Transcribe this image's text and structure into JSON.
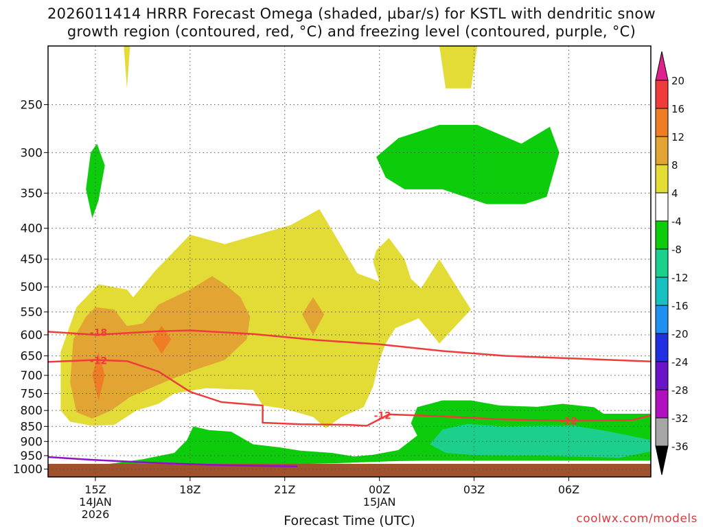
{
  "title": {
    "line1": "2026011414 HRRR Forecast Omega (shaded, µbar/s) for KSTL with dendritic snow",
    "line2": "growth region (contoured, red, °C) and freezing level (contoured, purple, °C)"
  },
  "credit": "coolwx.com/models",
  "chart_data": {
    "type": "time-height cross section",
    "xlabel": "Forecast Time (UTC)",
    "ylabel": "",
    "x_range_hours": [
      13.5,
      32.6
    ],
    "y_range_hPa": [
      200,
      1030
    ],
    "grid": true,
    "x_ticks": [
      {
        "hour": 15,
        "label": "15Z",
        "sub1": "14JAN",
        "sub2": "2026"
      },
      {
        "hour": 18,
        "label": "18Z",
        "sub1": "",
        "sub2": ""
      },
      {
        "hour": 21,
        "label": "21Z",
        "sub1": "",
        "sub2": ""
      },
      {
        "hour": 24,
        "label": "00Z",
        "sub1": "15JAN",
        "sub2": ""
      },
      {
        "hour": 27,
        "label": "03Z",
        "sub1": "",
        "sub2": ""
      },
      {
        "hour": 30,
        "label": "06Z",
        "sub1": "",
        "sub2": ""
      }
    ],
    "y_ticks": [
      250,
      300,
      350,
      400,
      450,
      500,
      550,
      600,
      650,
      700,
      750,
      800,
      850,
      900,
      950,
      1000
    ],
    "colorbar": {
      "labels": [
        "20",
        "16",
        "12",
        "8",
        "4",
        "-4",
        "-8",
        "-12",
        "-16",
        "-20",
        "-24",
        "-28",
        "-32",
        "-36"
      ],
      "bins": [
        {
          "range": "16 to 20",
          "color": "#ee3b3b"
        },
        {
          "range": "12 to 16",
          "color": "#ee7d26"
        },
        {
          "range": "8 to 12",
          "color": "#e2a534"
        },
        {
          "range": "4 to 8",
          "color": "#e3dc36"
        },
        {
          "range": "-4 to 4",
          "color": "#ffffff"
        },
        {
          "range": "-8 to -4",
          "color": "#0ccc0c"
        },
        {
          "range": "-12 to -8",
          "color": "#1ccf8c"
        },
        {
          "range": "-16 to -12",
          "color": "#18c0c0"
        },
        {
          "range": "-20 to -16",
          "color": "#1f8ff0"
        },
        {
          "range": "-24 to -20",
          "color": "#2030e0"
        },
        {
          "range": "-28 to -24",
          "color": "#6a14c8"
        },
        {
          "range": "-32 to -28",
          "color": "#b010c0"
        },
        {
          "range": "-36 to -32",
          "color": "#a6a6a6"
        }
      ],
      "top_extend_color": "#e0208c",
      "bottom_extend_color": "#000000"
    },
    "colors": {
      "omega_4_8": "#e3dc36",
      "omega_8_12": "#e2a534",
      "omega_12_16": "#ee7d26",
      "omega_neg4_neg8": "#0ccc0c",
      "omega_neg8_neg12": "#1ccf8c",
      "ground": "#a0522d",
      "dgz_contour": "#ee3b3b",
      "freezing_level": "#8e10c8"
    },
    "series": [
      {
        "name": "-18",
        "color": "#ee3b3b",
        "points": [
          [
            13.5,
            593
          ],
          [
            15,
            600
          ],
          [
            17,
            592
          ],
          [
            18,
            590
          ],
          [
            20,
            598
          ],
          [
            22,
            612
          ],
          [
            24,
            622
          ],
          [
            26,
            638
          ],
          [
            28,
            650
          ],
          [
            30,
            656
          ],
          [
            32.6,
            664
          ]
        ]
      },
      {
        "name": "-12",
        "color": "#ee3b3b",
        "points": [
          [
            13.5,
            665
          ],
          [
            15,
            660
          ],
          [
            16,
            663
          ],
          [
            17,
            690
          ],
          [
            18,
            745
          ],
          [
            19,
            775
          ],
          [
            20.3,
            785
          ],
          [
            20.3,
            838
          ],
          [
            21.5,
            843
          ],
          [
            23,
            845
          ],
          [
            23.6,
            848
          ],
          [
            24.3,
            812
          ],
          [
            26,
            818
          ],
          [
            28,
            828
          ],
          [
            30,
            832
          ],
          [
            32,
            830
          ],
          [
            32.6,
            815
          ]
        ]
      },
      {
        "name": "",
        "color": "#8e10c8",
        "points": [
          [
            13.5,
            955
          ],
          [
            15,
            966
          ],
          [
            17,
            977
          ],
          [
            19,
            985
          ],
          [
            21.4,
            990
          ]
        ]
      }
    ],
    "contour_labels": [
      {
        "text": "-18",
        "hour": 15.1,
        "pressure": 595
      },
      {
        "text": "-12",
        "hour": 15.1,
        "pressure": 662
      },
      {
        "text": "-12",
        "hour": 24.1,
        "pressure": 815
      },
      {
        "text": "-12",
        "hour": 30.0,
        "pressure": 833
      }
    ],
    "regions": [
      {
        "omega": "4 to 8",
        "polygon": [
          [
            13.9,
            640
          ],
          [
            14.4,
            540
          ],
          [
            15.1,
            495
          ],
          [
            16,
            505
          ],
          [
            16.2,
            520
          ],
          [
            16.9,
            470
          ],
          [
            18,
            410
          ],
          [
            19.1,
            425
          ],
          [
            21.2,
            395
          ],
          [
            22.1,
            372
          ],
          [
            22.7,
            420
          ],
          [
            23.3,
            475
          ],
          [
            24,
            490
          ],
          [
            23.8,
            455
          ],
          [
            23.9,
            435
          ],
          [
            24.3,
            415
          ],
          [
            24.8,
            450
          ],
          [
            25,
            485
          ],
          [
            25.8,
            530
          ],
          [
            25.5,
            555
          ],
          [
            25.2,
            565
          ],
          [
            24.5,
            585
          ],
          [
            24.2,
            620
          ],
          [
            24,
            660
          ],
          [
            23.8,
            730
          ],
          [
            23.5,
            790
          ],
          [
            22.8,
            820
          ],
          [
            22.3,
            855
          ],
          [
            21.9,
            820
          ],
          [
            21,
            795
          ],
          [
            20.3,
            785
          ],
          [
            20,
            740
          ],
          [
            18.5,
            735
          ],
          [
            17.5,
            750
          ],
          [
            17,
            780
          ],
          [
            16.3,
            800
          ],
          [
            15.6,
            845
          ],
          [
            14.9,
            848
          ],
          [
            14.2,
            835
          ],
          [
            13.9,
            800
          ]
        ]
      },
      {
        "omega": "4 to 8",
        "polygon": [
          [
            24.95,
            540
          ],
          [
            25.9,
            450
          ],
          [
            26.9,
            545
          ],
          [
            25.9,
            620
          ]
        ]
      },
      {
        "omega": "4 to 8",
        "polygon": [
          [
            15.9,
            200
          ],
          [
            16.1,
            200
          ],
          [
            16,
            235
          ]
        ]
      },
      {
        "omega": "4 to 8",
        "polygon": [
          [
            25.9,
            200
          ],
          [
            27.1,
            200
          ],
          [
            26.9,
            235
          ],
          [
            26.1,
            235
          ]
        ]
      },
      {
        "omega": "8 to 12",
        "polygon": [
          [
            14.3,
            610
          ],
          [
            14.7,
            560
          ],
          [
            15,
            540
          ],
          [
            15.6,
            545
          ],
          [
            16,
            580
          ],
          [
            16.5,
            575
          ],
          [
            17,
            535
          ],
          [
            18,
            505
          ],
          [
            18.7,
            480
          ],
          [
            19.1,
            495
          ],
          [
            19.6,
            520
          ],
          [
            19.9,
            560
          ],
          [
            19.8,
            610
          ],
          [
            19.1,
            660
          ],
          [
            18,
            690
          ],
          [
            17,
            725
          ],
          [
            16.1,
            760
          ],
          [
            15.5,
            800
          ],
          [
            14.9,
            825
          ],
          [
            14.4,
            805
          ],
          [
            14.2,
            720
          ]
        ]
      },
      {
        "omega": "8 to 12",
        "polygon": [
          [
            21.55,
            555
          ],
          [
            21.9,
            520
          ],
          [
            22.25,
            555
          ],
          [
            21.9,
            600
          ]
        ]
      },
      {
        "omega": "12 to 16",
        "polygon": [
          [
            14.9,
            700
          ],
          [
            15.1,
            640
          ],
          [
            15.3,
            700
          ],
          [
            15.1,
            770
          ]
        ]
      },
      {
        "omega": "12 to 16",
        "polygon": [
          [
            16.8,
            610
          ],
          [
            17.1,
            580
          ],
          [
            17.4,
            610
          ],
          [
            17.1,
            645
          ]
        ]
      },
      {
        "omega": "-4 to -8",
        "polygon": [
          [
            14.7,
            345
          ],
          [
            14.85,
            300
          ],
          [
            15.05,
            290
          ],
          [
            15.3,
            315
          ],
          [
            15.1,
            360
          ],
          [
            14.9,
            385
          ]
        ]
      },
      {
        "omega": "-4 to -8",
        "polygon": [
          [
            23.9,
            305
          ],
          [
            24.6,
            284
          ],
          [
            25.9,
            270
          ],
          [
            27.1,
            270
          ],
          [
            28.5,
            290
          ],
          [
            29.4,
            272
          ],
          [
            29.7,
            300
          ],
          [
            29.3,
            355
          ],
          [
            28.6,
            365
          ],
          [
            27.4,
            365
          ],
          [
            26,
            345
          ],
          [
            24.8,
            345
          ],
          [
            24.2,
            330
          ]
        ]
      },
      {
        "omega": "-4 to -8",
        "polygon": [
          [
            15,
            987
          ],
          [
            16.5,
            963
          ],
          [
            17.5,
            940
          ],
          [
            17.9,
            895
          ],
          [
            18.1,
            850
          ],
          [
            18.6,
            862
          ],
          [
            19.3,
            867
          ],
          [
            20,
            910
          ],
          [
            20.8,
            920
          ],
          [
            21.5,
            932
          ],
          [
            22.5,
            940
          ],
          [
            23.2,
            953
          ],
          [
            23.8,
            947
          ],
          [
            24.6,
            930
          ],
          [
            25.2,
            880
          ],
          [
            25,
            840
          ],
          [
            25.2,
            790
          ],
          [
            26,
            770
          ],
          [
            26.9,
            770
          ],
          [
            27.8,
            785
          ],
          [
            29,
            789
          ],
          [
            29.8,
            780
          ],
          [
            30.8,
            790
          ],
          [
            31.1,
            810
          ],
          [
            32.6,
            810
          ],
          [
            32.6,
            968
          ],
          [
            31,
            968
          ],
          [
            29,
            968
          ],
          [
            27,
            968
          ],
          [
            25.5,
            968
          ],
          [
            24.5,
            970
          ],
          [
            22.5,
            978
          ],
          [
            20,
            985
          ],
          [
            17,
            990
          ],
          [
            15,
            993
          ]
        ]
      },
      {
        "omega": "-8 to -12",
        "polygon": [
          [
            25.6,
            910
          ],
          [
            26,
            860
          ],
          [
            26.8,
            842
          ],
          [
            27.9,
            850
          ],
          [
            29.1,
            848
          ],
          [
            30.2,
            848
          ],
          [
            31.2,
            865
          ],
          [
            32.6,
            895
          ],
          [
            32.6,
            935
          ],
          [
            31.6,
            958
          ],
          [
            30.6,
            955
          ],
          [
            29.2,
            950
          ],
          [
            28,
            950
          ],
          [
            27,
            948
          ],
          [
            26.1,
            940
          ]
        ]
      }
    ],
    "ground_pressure": 980
  }
}
